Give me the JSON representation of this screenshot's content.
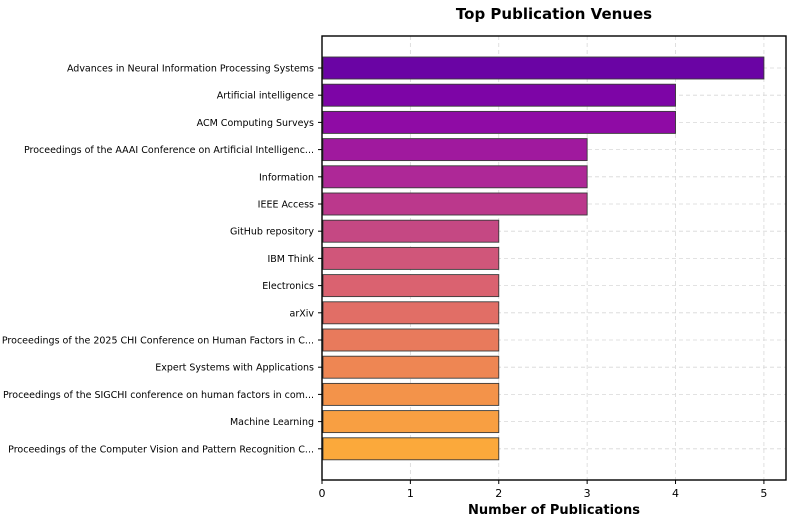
{
  "chart_data": {
    "type": "bar",
    "orientation": "horizontal",
    "title": "Top Publication Venues",
    "xlabel": "Number of Publications",
    "ylabel": "",
    "xlim": [
      0,
      5.25
    ],
    "xticks": [
      0,
      1,
      2,
      3,
      4,
      5
    ],
    "grid": true,
    "categories": [
      "Advances in Neural Information Processing Systems",
      "Artificial intelligence",
      "ACM Computing Surveys",
      "Proceedings of the AAAI Conference on Artificial Intelligenc...",
      "Information",
      "IEEE Access",
      "GitHub repository",
      "IBM Think",
      "Electronics",
      "arXiv",
      "Proceedings of the 2025 CHI Conference on Human Factors in C...",
      "Expert Systems with Applications",
      "Proceedings of the SIGCHI conference on human factors in com...",
      "Machine Learning",
      "Proceedings of the Computer Vision and Pattern Recognition C..."
    ],
    "values": [
      5,
      4,
      4,
      3,
      3,
      3,
      2,
      2,
      2,
      2,
      2,
      2,
      2,
      2,
      2
    ],
    "colors": [
      "#6a04a4",
      "#7d05a6",
      "#8f0ba5",
      "#a0199e",
      "#ae2897",
      "#bb388c",
      "#c54883",
      "#d0567a",
      "#da6270",
      "#e16e66",
      "#e87a5c",
      "#ee8653",
      "#f3934a",
      "#f89f42",
      "#fba93b"
    ]
  }
}
